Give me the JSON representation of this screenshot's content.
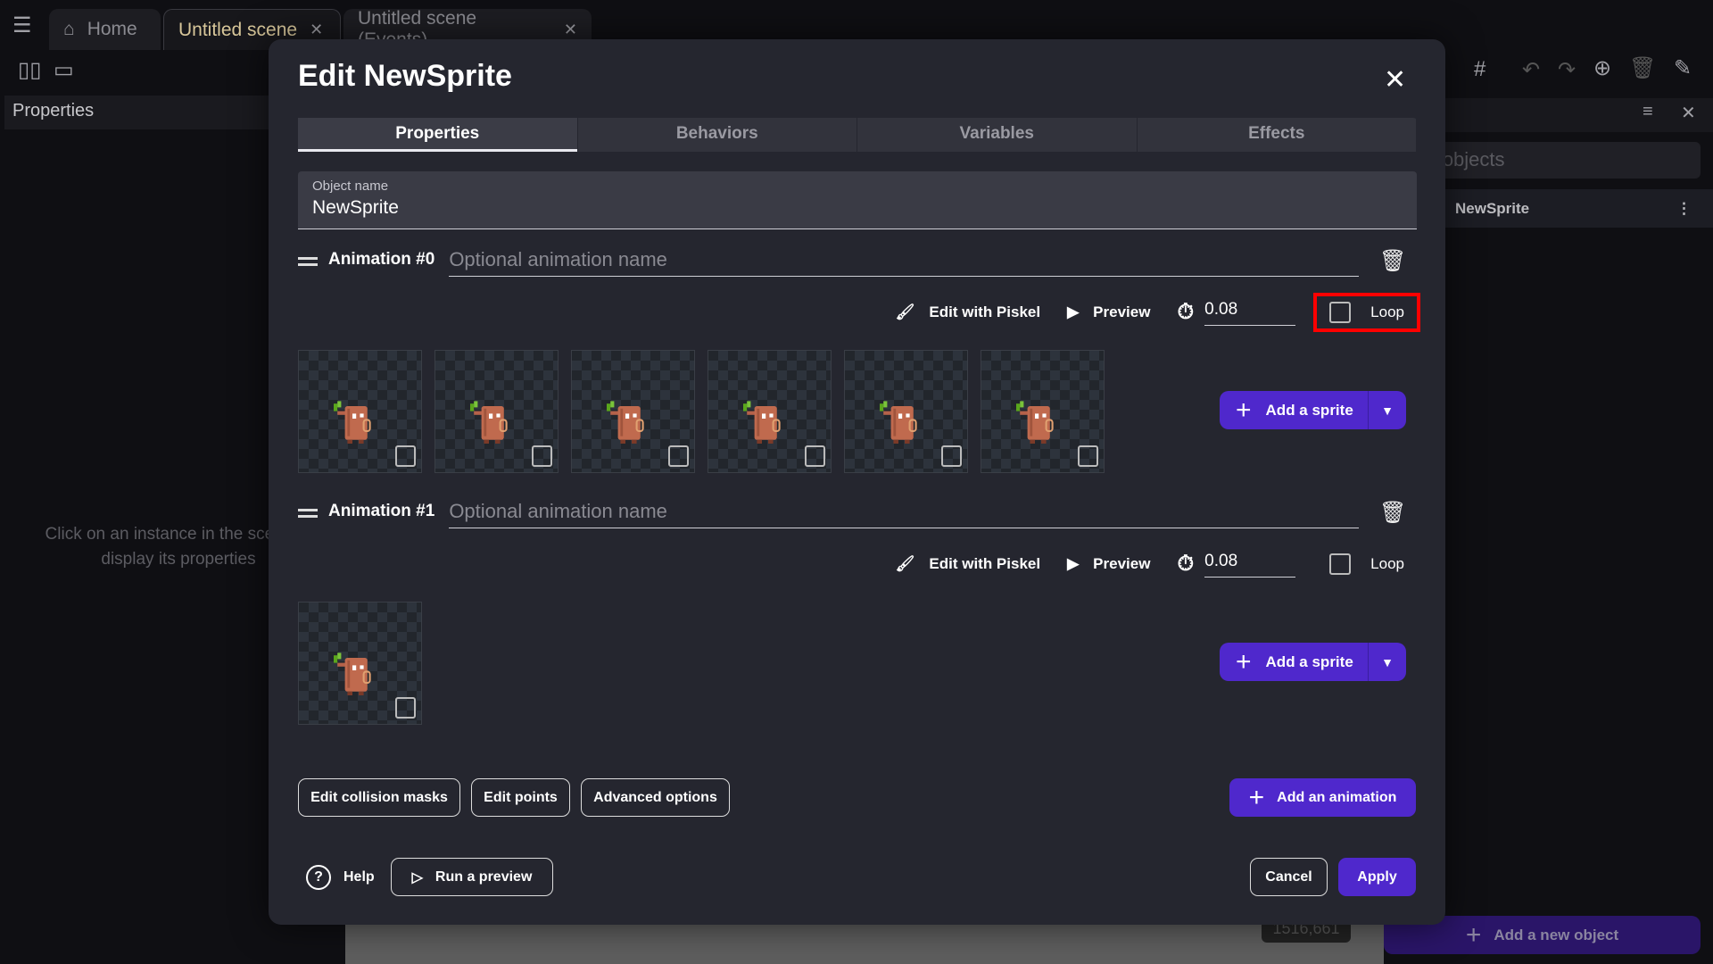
{
  "app_tabs": [
    {
      "label": "Home",
      "icon": "home-icon"
    },
    {
      "label": "Untitled scene",
      "active": true
    },
    {
      "label": "Untitled scene (Events)"
    }
  ],
  "left_panel": {
    "title": "Properties",
    "placeholder": "Click on an instance in the scene to display its properties"
  },
  "right_panel": {
    "search_placeholder": "Search objects",
    "objects": [
      "NewSprite"
    ],
    "add_button": "Add a new object"
  },
  "canvas": {
    "coordinates": "1516,661"
  },
  "dialog": {
    "title": "Edit NewSprite",
    "tabs": [
      {
        "label": "Properties",
        "active": true
      },
      {
        "label": "Behaviors"
      },
      {
        "label": "Variables"
      },
      {
        "label": "Effects"
      }
    ],
    "object_name_label": "Object name",
    "object_name": "NewSprite",
    "animations": [
      {
        "label": "Animation #0",
        "name_placeholder": "Optional animation name",
        "edit_label": "Edit with Piskel",
        "preview_label": "Preview",
        "duration": "0.08",
        "loop_label": "Loop",
        "loop": false,
        "loop_highlighted": true,
        "sprite_count": 6,
        "add_sprite_label": "Add a sprite"
      },
      {
        "label": "Animation #1",
        "name_placeholder": "Optional animation name",
        "edit_label": "Edit with Piskel",
        "preview_label": "Preview",
        "duration": "0.08",
        "loop_label": "Loop",
        "loop": false,
        "loop_highlighted": false,
        "sprite_count": 1,
        "add_sprite_label": "Add a sprite"
      }
    ],
    "buttons": {
      "edit_collision": "Edit collision masks",
      "edit_points": "Edit points",
      "advanced": "Advanced options",
      "add_animation": "Add an animation",
      "help": "Help",
      "run_preview": "Run a preview",
      "cancel": "Cancel",
      "apply": "Apply"
    },
    "colors": {
      "primary": "#4f28cc",
      "highlight": "#ff0000"
    }
  }
}
